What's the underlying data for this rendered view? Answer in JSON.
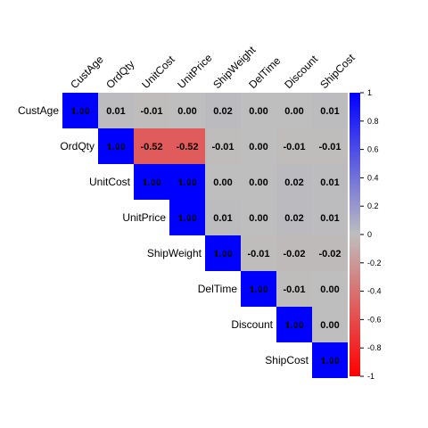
{
  "chart_data": {
    "type": "heatmap",
    "layout": "upper-triangle",
    "variables": [
      "CustAge",
      "OrdQty",
      "UnitCost",
      "UnitPrice",
      "ShipWeight",
      "DelTime",
      "Discount",
      "ShipCost"
    ],
    "matrix": [
      [
        1.0,
        0.01,
        -0.01,
        0.0,
        0.02,
        0.0,
        0.0,
        0.01
      ],
      [
        null,
        1.0,
        -0.52,
        -0.52,
        -0.01,
        0.0,
        -0.01,
        -0.01
      ],
      [
        null,
        null,
        1.0,
        1.0,
        0.0,
        0.0,
        0.02,
        0.01
      ],
      [
        null,
        null,
        null,
        1.0,
        0.01,
        0.0,
        0.02,
        0.01
      ],
      [
        null,
        null,
        null,
        null,
        1.0,
        -0.01,
        -0.02,
        -0.02
      ],
      [
        null,
        null,
        null,
        null,
        null,
        1.0,
        -0.01,
        0.0
      ],
      [
        null,
        null,
        null,
        null,
        null,
        null,
        1.0,
        0.0
      ],
      [
        null,
        null,
        null,
        null,
        null,
        null,
        null,
        1.0
      ]
    ],
    "colorbar": {
      "range": [
        -1,
        1
      ],
      "ticks": [
        "1",
        "0.8",
        "0.6",
        "0.4",
        "0.2",
        "0",
        "-0.2",
        "-0.4",
        "-0.6",
        "-0.8",
        "-1"
      ]
    },
    "colors": {
      "negative": "#ff0000",
      "neutral": "#bebebe",
      "positive": "#0000ff",
      "text": "#000000"
    }
  }
}
